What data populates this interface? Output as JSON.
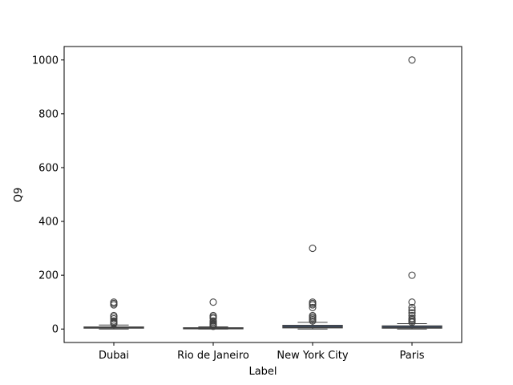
{
  "chart_data": {
    "type": "box",
    "title": "",
    "xlabel": "Label",
    "ylabel": "Q9",
    "ylim": [
      -50,
      1050
    ],
    "yticks": [
      0,
      200,
      400,
      600,
      800,
      1000
    ],
    "categories": [
      "Dubai",
      "Rio de Janeiro",
      "New York City",
      "Paris"
    ],
    "boxes": [
      {
        "category": "Dubai",
        "q1": 3,
        "median": 5,
        "q3": 8,
        "whisker_low": 0,
        "whisker_high": 15,
        "outliers": [
          20,
          22,
          25,
          30,
          38,
          45,
          50,
          90,
          95,
          100
        ]
      },
      {
        "category": "Rio de Janeiro",
        "q1": 2,
        "median": 3,
        "q3": 5,
        "whisker_low": 0,
        "whisker_high": 8,
        "outliers": [
          10,
          12,
          15,
          18,
          20,
          25,
          30,
          40,
          45,
          50,
          100
        ]
      },
      {
        "category": "New York City",
        "q1": 4,
        "median": 7,
        "q3": 14,
        "whisker_low": 0,
        "whisker_high": 25,
        "outliers": [
          30,
          35,
          40,
          45,
          50,
          80,
          90,
          95,
          100,
          300
        ]
      },
      {
        "category": "Paris",
        "q1": 3,
        "median": 6,
        "q3": 12,
        "whisker_low": 0,
        "whisker_high": 20,
        "outliers": [
          25,
          30,
          35,
          40,
          50,
          60,
          70,
          80,
          100,
          200,
          1000
        ]
      }
    ],
    "colors": {
      "box_fill": "#3a4d6a",
      "stroke": "#404040",
      "axes": "#000000"
    },
    "grid": false
  }
}
